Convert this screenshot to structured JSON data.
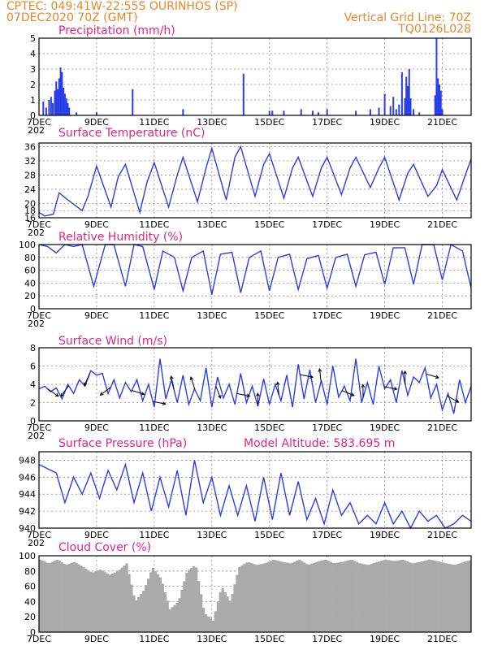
{
  "header": {
    "line1_left": "CPTEC:   049:41W-22:55S   OURINHOS (SP)",
    "line2_left": "07DEC2020 70Z (GMT)",
    "line1_right": "Vertical Grid Line: 70Z",
    "line2_right": "TQ0126L028"
  },
  "colors": {
    "series": "#2a3ee8",
    "title": "#e8247a",
    "header": "#e8862a",
    "cloud": "#aaaaaa"
  },
  "x_axis": {
    "start_day": 7,
    "end_day": 22,
    "tick_labels": [
      "7DEC",
      "9DEC",
      "11DEC",
      "13DEC",
      "15DEC",
      "17DEC",
      "19DEC",
      "21DEC"
    ],
    "tick_days": [
      7,
      9,
      11,
      13,
      15,
      17,
      19,
      21
    ],
    "overlap_label": "202"
  },
  "chart_data": [
    {
      "type": "bar",
      "title": "Precipitation (mm/h)",
      "ylim": [
        0,
        5
      ],
      "yticks": [
        0,
        1,
        2,
        3,
        4,
        5
      ],
      "x_days": [
        7.15,
        7.25,
        7.35,
        7.42,
        7.48,
        7.55,
        7.6,
        7.65,
        7.7,
        7.75,
        7.8,
        7.85,
        7.9,
        7.95,
        8.0,
        8.05,
        8.3,
        9.0,
        10.25,
        12.0,
        14.1,
        15.0,
        15.1,
        15.5,
        16.1,
        16.5,
        16.7,
        17.0,
        18.0,
        18.5,
        18.8,
        19.0,
        19.2,
        19.3,
        19.4,
        19.5,
        19.6,
        19.7,
        19.75,
        19.8,
        19.85,
        19.9,
        20.0,
        20.2,
        20.75,
        20.8,
        20.85,
        20.9,
        20.95,
        21.0
      ],
      "values": [
        0.9,
        0.5,
        1.0,
        1.2,
        0.8,
        1.6,
        2.2,
        1.7,
        2.4,
        3.1,
        2.8,
        1.8,
        1.4,
        1.1,
        0.8,
        0.5,
        0.2,
        0.2,
        1.7,
        0.4,
        2.7,
        0.3,
        0.3,
        0.3,
        0.4,
        0.3,
        0.2,
        0.4,
        0.3,
        0.4,
        0.5,
        1.4,
        0.6,
        1.2,
        0.4,
        0.7,
        2.8,
        1.1,
        2.5,
        1.9,
        3.0,
        1.1,
        0.4,
        0.2,
        1.3,
        5.0,
        2.4,
        2.0,
        1.6,
        0.4
      ]
    },
    {
      "type": "line",
      "title": "Surface Temperature (nC)",
      "ylim": [
        16,
        37
      ],
      "yticks": [
        16,
        18,
        20,
        24,
        28,
        32,
        36
      ],
      "x_days": [
        7.0,
        7.2,
        7.5,
        7.7,
        8.0,
        8.5,
        8.7,
        9.0,
        9.5,
        9.75,
        10.0,
        10.5,
        10.75,
        11.0,
        11.5,
        11.8,
        12.0,
        12.5,
        12.8,
        13.0,
        13.5,
        13.8,
        14.0,
        14.5,
        14.8,
        15.0,
        15.5,
        15.8,
        16.0,
        16.5,
        16.8,
        17.0,
        17.5,
        17.8,
        18.0,
        18.5,
        18.8,
        19.0,
        19.5,
        19.8,
        20.0,
        20.5,
        20.8,
        21.0,
        21.5,
        21.8,
        22.0
      ],
      "values": [
        17.5,
        16.5,
        17.0,
        23.0,
        21.0,
        18.0,
        22.0,
        30.5,
        19.0,
        27.5,
        31.0,
        17.5,
        26.0,
        31.5,
        19.0,
        28.0,
        33.0,
        20.5,
        30.0,
        35.5,
        21.0,
        33.0,
        36.0,
        22.0,
        31.0,
        34.0,
        21.5,
        30.0,
        33.0,
        22.0,
        30.0,
        33.0,
        22.5,
        30.0,
        33.0,
        24.5,
        30.0,
        33.0,
        21.0,
        28.5,
        31.0,
        22.0,
        25.0,
        29.5,
        21.0,
        28.0,
        32.5
      ]
    },
    {
      "type": "line",
      "title": "Relative Humidity (%)",
      "ylim": [
        0,
        100
      ],
      "yticks": [
        0,
        20,
        40,
        60,
        80,
        100
      ],
      "x_days": [
        7.0,
        7.3,
        7.6,
        7.9,
        8.2,
        8.5,
        8.9,
        9.3,
        9.6,
        10.0,
        10.3,
        10.6,
        11.0,
        11.3,
        11.7,
        12.0,
        12.3,
        12.7,
        13.0,
        13.3,
        13.7,
        14.0,
        14.3,
        14.7,
        15.0,
        15.3,
        15.7,
        16.0,
        16.3,
        16.7,
        17.0,
        17.3,
        17.7,
        18.0,
        18.3,
        18.7,
        19.0,
        19.3,
        19.7,
        20.0,
        20.3,
        20.7,
        21.0,
        21.3,
        21.7,
        22.0
      ],
      "values": [
        100,
        97,
        87,
        100,
        97,
        100,
        35,
        100,
        100,
        35,
        100,
        97,
        30,
        90,
        80,
        28,
        80,
        90,
        22,
        85,
        88,
        25,
        80,
        90,
        28,
        80,
        85,
        30,
        78,
        83,
        32,
        80,
        85,
        35,
        84,
        88,
        38,
        95,
        95,
        38,
        100,
        100,
        45,
        100,
        90,
        32
      ]
    },
    {
      "type": "line",
      "title": "Surface Wind (m/s)",
      "ylim": [
        0,
        8
      ],
      "yticks": [
        0,
        2,
        4,
        6,
        8
      ],
      "x_days": [
        7.0,
        7.2,
        7.4,
        7.6,
        7.8,
        8.0,
        8.2,
        8.4,
        8.6,
        8.8,
        9.0,
        9.2,
        9.4,
        9.6,
        9.8,
        10.0,
        10.2,
        10.4,
        10.6,
        10.8,
        11.0,
        11.2,
        11.4,
        11.6,
        11.8,
        12.0,
        12.2,
        12.4,
        12.6,
        12.8,
        13.0,
        13.2,
        13.4,
        13.6,
        13.8,
        14.0,
        14.2,
        14.4,
        14.6,
        14.8,
        15.0,
        15.2,
        15.4,
        15.6,
        15.8,
        16.0,
        16.2,
        16.4,
        16.6,
        16.8,
        17.0,
        17.2,
        17.4,
        17.6,
        17.8,
        18.0,
        18.2,
        18.4,
        18.6,
        18.8,
        19.0,
        19.2,
        19.4,
        19.6,
        19.8,
        20.0,
        20.2,
        20.4,
        20.6,
        20.8,
        21.0,
        21.2,
        21.4,
        21.6,
        21.8,
        22.0
      ],
      "values": [
        3.5,
        3.8,
        3.2,
        3.6,
        2.4,
        4.0,
        3.0,
        4.5,
        3.8,
        5.5,
        5.0,
        5.2,
        3.0,
        4.5,
        2.5,
        4.2,
        3.2,
        4.5,
        2.2,
        4.0,
        1.5,
        6.8,
        2.4,
        4.5,
        2.0,
        5.0,
        1.8,
        3.5,
        2.2,
        5.8,
        1.5,
        4.8,
        2.5,
        4.0,
        1.8,
        5.2,
        2.0,
        3.8,
        1.6,
        4.6,
        1.8,
        4.0,
        2.2,
        5.0,
        1.5,
        6.2,
        2.4,
        5.6,
        2.0,
        4.4,
        1.8,
        6.0,
        2.6,
        3.8,
        2.2,
        6.8,
        2.0,
        4.2,
        1.8,
        6.0,
        3.5,
        4.5,
        2.0,
        5.5,
        2.8,
        4.8,
        4.2,
        5.8,
        2.5,
        4.0,
        1.2,
        3.0,
        0.8,
        4.5,
        2.0,
        3.8
      ]
    },
    {
      "type": "line",
      "title": "Surface Pressure (hPa)",
      "subtitle": "Model Altitude: 583.695 m",
      "ylim": [
        940,
        949
      ],
      "yticks": [
        940,
        942,
        944,
        946,
        948
      ],
      "x_days": [
        7.0,
        7.3,
        7.6,
        7.9,
        8.2,
        8.5,
        8.8,
        9.1,
        9.4,
        9.7,
        10.0,
        10.3,
        10.6,
        10.9,
        11.2,
        11.5,
        11.8,
        12.1,
        12.4,
        12.7,
        13.0,
        13.3,
        13.6,
        13.9,
        14.2,
        14.5,
        14.8,
        15.1,
        15.4,
        15.7,
        16.0,
        16.3,
        16.6,
        16.9,
        17.2,
        17.5,
        17.8,
        18.1,
        18.4,
        18.7,
        19.0,
        19.3,
        19.6,
        19.9,
        20.2,
        20.5,
        20.8,
        21.1,
        21.4,
        21.7,
        22.0
      ],
      "values": [
        947.5,
        947.0,
        946.5,
        943.0,
        946.0,
        944.0,
        946.5,
        943.5,
        946.8,
        944.5,
        947.5,
        943.0,
        946.5,
        942.0,
        946.0,
        942.5,
        946.8,
        941.5,
        948.0,
        943.0,
        946.0,
        941.5,
        945.0,
        941.5,
        945.0,
        940.8,
        946.0,
        941.0,
        946.5,
        941.5,
        945.5,
        941.0,
        943.5,
        940.5,
        944.5,
        941.5,
        943.0,
        940.5,
        941.5,
        940.5,
        943.0,
        940.5,
        942.0,
        940.0,
        942.0,
        940.8,
        941.5,
        940.0,
        940.5,
        941.5,
        940.8
      ]
    },
    {
      "type": "area",
      "title": "Cloud Cover (%)",
      "ylim": [
        0,
        100
      ],
      "yticks": [
        0,
        20,
        40,
        60,
        80,
        100
      ],
      "x_days": [
        7.0,
        7.3,
        7.6,
        7.9,
        8.2,
        8.5,
        8.8,
        9.1,
        9.4,
        9.7,
        10.0,
        10.3,
        10.6,
        10.9,
        11.2,
        11.5,
        11.8,
        12.1,
        12.4,
        12.7,
        13.0,
        13.3,
        13.6,
        13.9,
        14.2,
        14.5,
        14.8,
        15.1,
        15.4,
        15.7,
        16.0,
        16.3,
        16.6,
        16.9,
        17.2,
        17.5,
        17.8,
        18.1,
        18.4,
        18.7,
        19.0,
        19.3,
        19.6,
        19.9,
        20.2,
        20.5,
        20.8,
        21.1,
        21.4,
        21.7,
        22.0
      ],
      "values": [
        95,
        90,
        95,
        88,
        92,
        85,
        78,
        82,
        75,
        80,
        90,
        40,
        55,
        85,
        70,
        30,
        40,
        80,
        88,
        25,
        15,
        60,
        40,
        85,
        92,
        88,
        90,
        95,
        92,
        90,
        95,
        88,
        92,
        95,
        90,
        92,
        95,
        90,
        88,
        92,
        95,
        93,
        95,
        90,
        92,
        95,
        93,
        90,
        88,
        92,
        95
      ]
    }
  ]
}
